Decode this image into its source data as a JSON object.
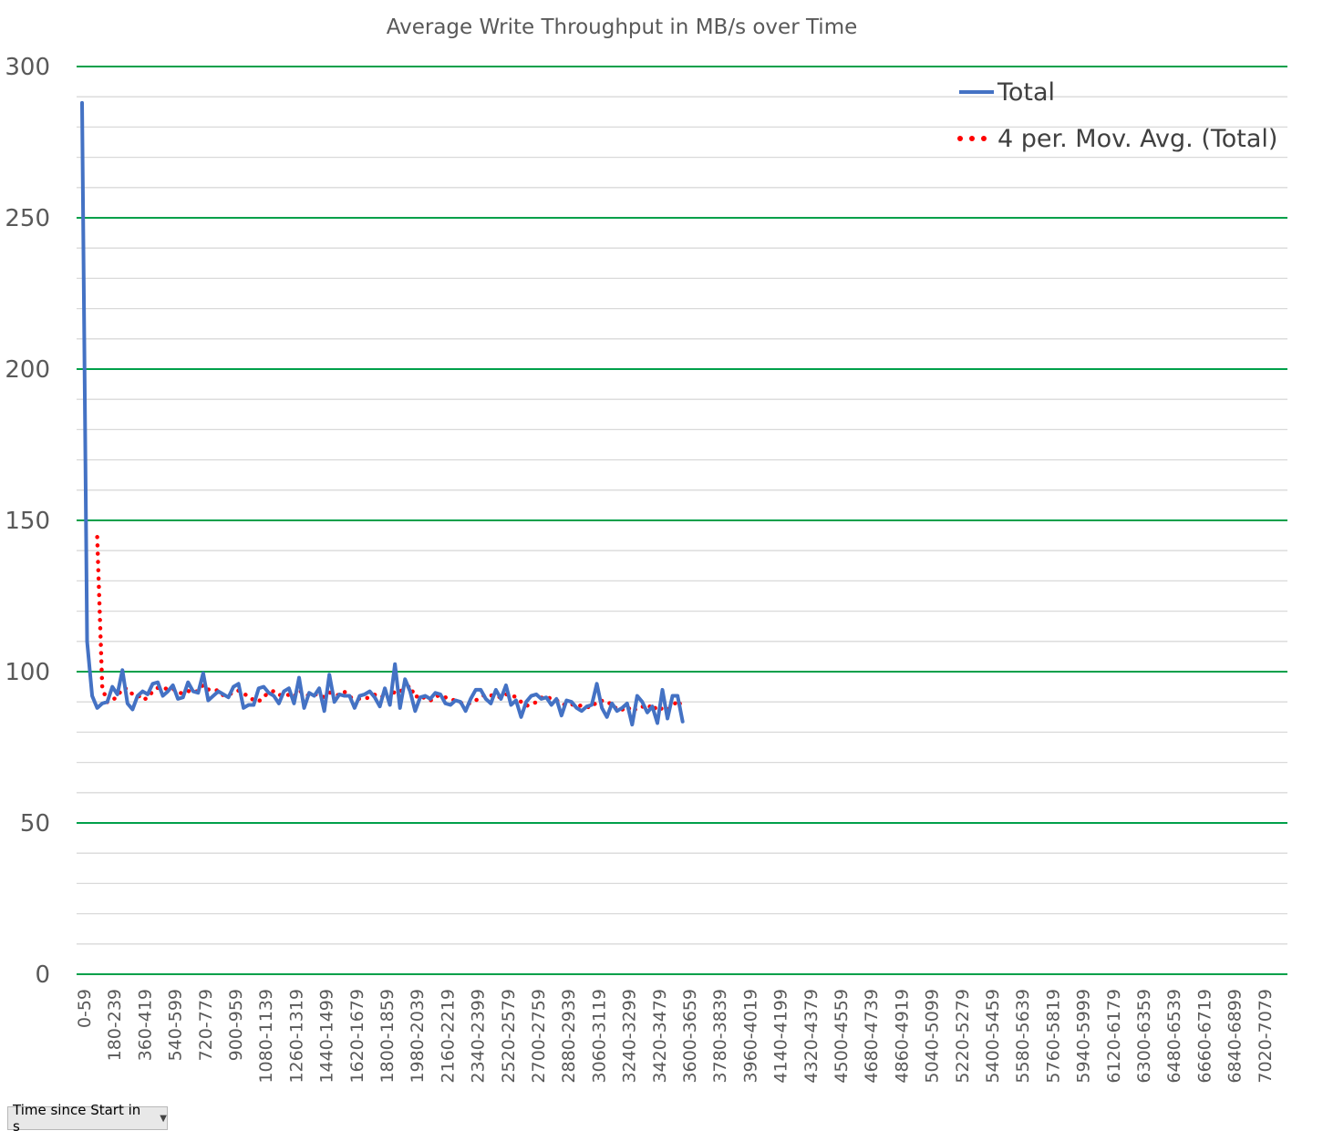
{
  "chart_data": {
    "type": "line",
    "title": "Average Write Throughput in MB/s over Time",
    "xlabel": "",
    "ylabel": "",
    "ylim": [
      0,
      300
    ],
    "y_ticks": [
      "0",
      "50",
      "100",
      "150",
      "200",
      "250",
      "300"
    ],
    "grid": {
      "major": true,
      "minor": true,
      "major_color": "#00a04a",
      "minor_color": "#d9d9d9"
    },
    "legend_position": "top-right",
    "x_tick_labels": [
      "0-59",
      "180-239",
      "360-419",
      "540-599",
      "720-779",
      "900-959",
      "1080-1139",
      "1260-1319",
      "1440-1499",
      "1620-1679",
      "1800-1859",
      "1980-2039",
      "2160-2219",
      "2340-2399",
      "2520-2579",
      "2700-2759",
      "2880-2939",
      "3060-3119",
      "3240-3299",
      "3420-3479",
      "3600-3659",
      "3780-3839",
      "3960-4019",
      "4140-4199",
      "4320-4379",
      "4500-4559",
      "4680-4739",
      "4860-4919",
      "5040-5099",
      "5220-5279",
      "5400-5459",
      "5580-5639",
      "5760-5819",
      "5940-5999",
      "6120-6179",
      "6300-6359",
      "6480-6539",
      "6660-6719",
      "6840-6899",
      "7020-7079"
    ],
    "series": [
      {
        "name": "Total",
        "color": "#4472c4",
        "style": "solid",
        "values": [
          288,
          110,
          92,
          88,
          89.5,
          90,
          95,
          92.5,
          100.5,
          89.5,
          87.5,
          92,
          93.5,
          92.5,
          96,
          96.5,
          92,
          93.5,
          95.5,
          91,
          91.5,
          96.5,
          93.5,
          93,
          99.5,
          90.5,
          92,
          93.5,
          92.5,
          91.5,
          95,
          96,
          88,
          89,
          89,
          94.5,
          95,
          93,
          92,
          89.5,
          93.5,
          94.5,
          89.5,
          98,
          88,
          93,
          92,
          94.5,
          87,
          99,
          90,
          92.5,
          92,
          92,
          88,
          92,
          92.5,
          93.5,
          91.5,
          88.5,
          94.5,
          89,
          102.5,
          88,
          97.5,
          93.5,
          87,
          91.5,
          92,
          91,
          93,
          92.5,
          89.5,
          89,
          90.5,
          90,
          87,
          91,
          94,
          94,
          91,
          89.5,
          94,
          91,
          95.5,
          89,
          90.5,
          85,
          90,
          92,
          92.5,
          91,
          91.5,
          89,
          91,
          85.5,
          90.5,
          90,
          88,
          87,
          88.5,
          89,
          96,
          88,
          85,
          89.5,
          87,
          88,
          89.5,
          82.5,
          92,
          90,
          86.5,
          88.5,
          83,
          94,
          84.5,
          92,
          92,
          83.5
        ],
        "computed_by_script": false
      },
      {
        "name": "4 per. Mov. Avg. (Total)",
        "color": "#ff0000",
        "style": "dotted",
        "moving_average_period": 4
      }
    ]
  },
  "field_button": {
    "label": "Time since Start in s",
    "caret": "▼"
  }
}
